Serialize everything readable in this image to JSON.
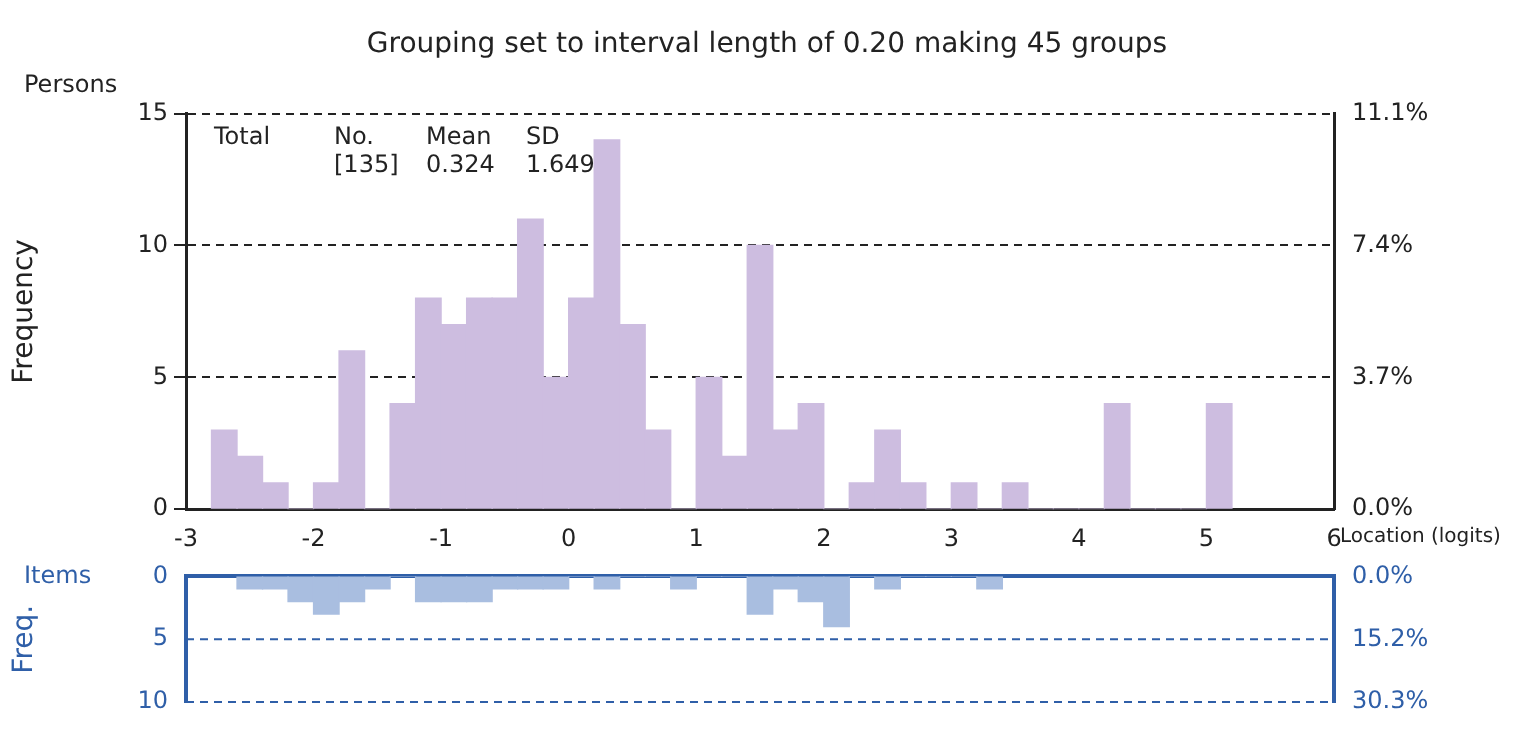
{
  "chart_data": [
    {
      "type": "histogram",
      "title": "Grouping set to interval length of 0.20 making 45 groups",
      "xlabel": "Location (logits)",
      "ylabel": "Frequency",
      "annotations": [
        "Persons",
        "Total",
        "No.\n[135]",
        "Mean\n0.324",
        "SD\n1.649"
      ],
      "bins": [
        -2.8,
        -2.6,
        -2.4,
        -2.2,
        -2.0,
        -1.8,
        -1.6,
        -1.4,
        -1.2,
        -1.0,
        -0.8,
        -0.6,
        -0.4,
        -0.2,
        0.0,
        0.2,
        0.4,
        0.6,
        0.8,
        1.0,
        1.2,
        1.4,
        1.6,
        1.8,
        2.0,
        2.2,
        2.4,
        2.6,
        2.8,
        3.0,
        3.2,
        3.4,
        3.6,
        3.8,
        4.0,
        4.2,
        4.4,
        4.6,
        4.8,
        5.0,
        5.2
      ],
      "values": [
        3,
        2,
        1,
        0,
        1,
        6,
        0,
        4,
        8,
        7,
        8,
        8,
        11,
        5,
        8,
        14,
        7,
        3,
        0,
        5,
        2,
        10,
        3,
        4,
        0,
        1,
        3,
        1,
        0,
        1,
        0,
        1,
        0,
        0,
        0,
        4,
        0,
        0,
        0,
        4
      ],
      "color": "#cdbde0",
      "xlim": [
        -3,
        6
      ],
      "xticks": [
        -3,
        -2,
        -1,
        0,
        1,
        2,
        3,
        4,
        5,
        6
      ],
      "ylim": [
        0,
        15
      ],
      "yticks": [
        0,
        5,
        10,
        15
      ],
      "y2lim": [
        0,
        11.1
      ],
      "y2ticks": [
        {
          "value": 0,
          "label": "0.0%"
        },
        {
          "value": 3.7,
          "label": "3.7%"
        },
        {
          "value": 7.4,
          "label": "7.4%"
        },
        {
          "value": 11.1,
          "label": "11.1%"
        }
      ],
      "grid": "y",
      "legend": false
    },
    {
      "type": "histogram",
      "ylabel": "Freq.",
      "annotations": [
        "Items"
      ],
      "bins": [
        -2.6,
        -2.4,
        -2.2,
        -2.0,
        -1.8,
        -1.6,
        -1.4,
        -1.2,
        -1.0,
        -0.8,
        -0.6,
        -0.4,
        -0.2,
        0.0,
        0.2,
        0.4,
        0.6,
        0.8,
        1.0,
        1.2,
        1.4,
        1.6,
        1.8,
        2.0,
        2.2,
        2.4,
        2.6,
        2.8,
        3.0,
        3.2,
        3.4
      ],
      "values": [
        1,
        1,
        2,
        3,
        2,
        1,
        0,
        2,
        2,
        2,
        1,
        1,
        1,
        0,
        1,
        0,
        0,
        1,
        0,
        0,
        3,
        1,
        2,
        4,
        0,
        1,
        0,
        0,
        0,
        1
      ],
      "color": "#a9bee0",
      "xlim": [
        -3,
        6
      ],
      "xticks": [
        -3,
        -2,
        -1,
        0,
        1,
        2,
        3,
        4,
        5,
        6
      ],
      "ylim": [
        10,
        0
      ],
      "yticks": [
        0,
        5,
        10
      ],
      "y2lim": [
        30.3,
        0
      ],
      "y2ticks": [
        {
          "value": 0,
          "label": "0.0%"
        },
        {
          "value": 15.2,
          "label": "15.2%"
        },
        {
          "value": 30.3,
          "label": "30.3%"
        }
      ],
      "tick_labels": "y",
      "legend": false,
      "ref_lines": [
        {
          "axis": "y",
          "value": 5,
          "color": "#2f5fa8",
          "line_style": "dashed"
        },
        {
          "axis": "y",
          "value": 10,
          "color": "#2f5fa8",
          "line_style": "dashed"
        }
      ]
    }
  ]
}
